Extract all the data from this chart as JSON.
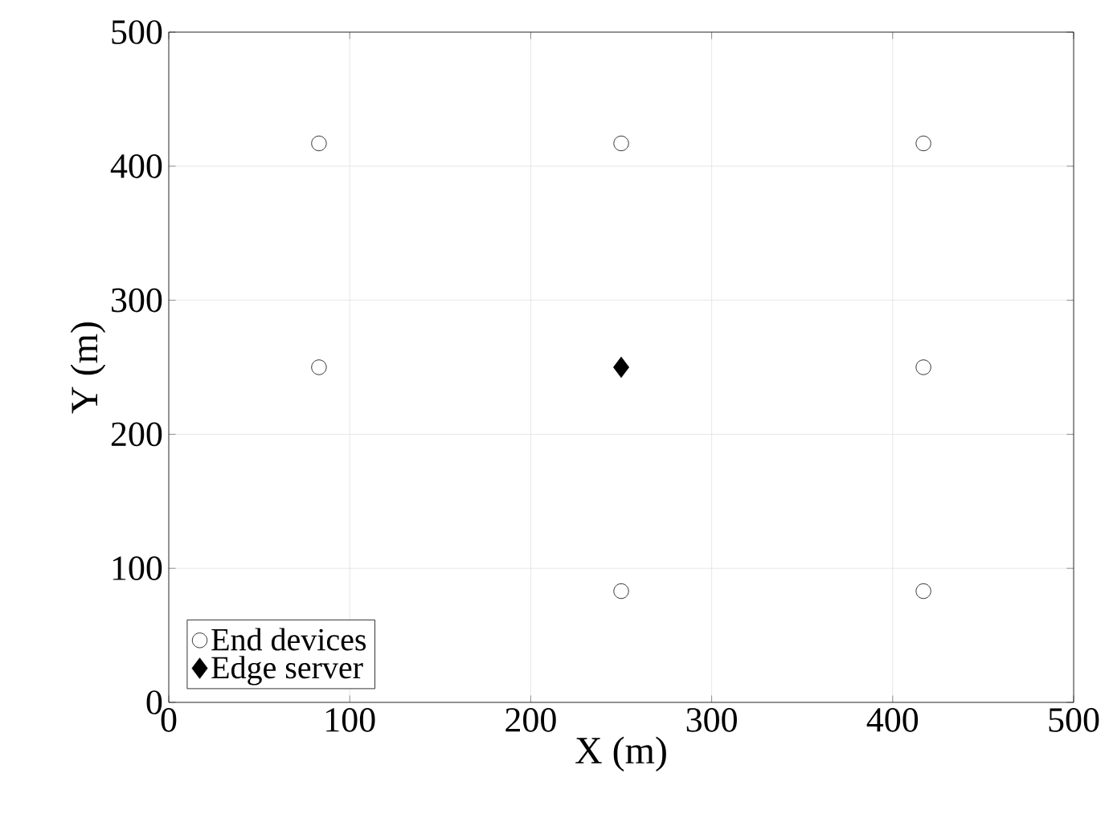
{
  "chart_data": {
    "type": "scatter",
    "xlabel": "X (m)",
    "ylabel": "Y (m)",
    "xlim": [
      0,
      500
    ],
    "ylim": [
      0,
      500
    ],
    "xticks": [
      0,
      100,
      200,
      300,
      400,
      500
    ],
    "yticks": [
      0,
      100,
      200,
      300,
      400,
      500
    ],
    "grid": true,
    "legend": "bottom left",
    "series": [
      {
        "name": "End devices",
        "color": "#000000",
        "marker": "circle",
        "x": [
          83,
          250,
          417,
          83,
          417,
          250,
          417
        ],
        "values": [
          417,
          417,
          417,
          250,
          250,
          83,
          83
        ]
      },
      {
        "name": "Edge server",
        "color": "#000000",
        "marker": "diamond",
        "x": [
          250
        ],
        "values": [
          250
        ]
      }
    ]
  }
}
